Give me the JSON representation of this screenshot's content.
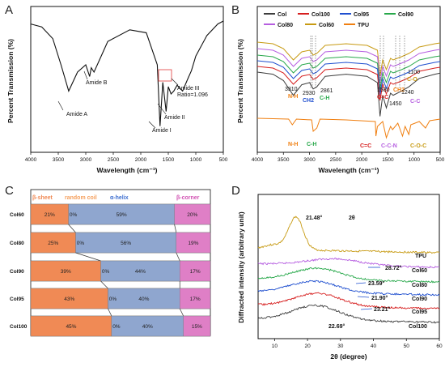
{
  "panels": {
    "a": "A",
    "b": "B",
    "c": "C",
    "d": "D"
  },
  "colors": {
    "Col": "#3d3d3d",
    "Col100": "#d61f1f",
    "Col95": "#1f4fcf",
    "Col90": "#27a84a",
    "Col80": "#b65ee0",
    "Col60": "#c79a12",
    "TPU": "#f07f10",
    "beta_sheet": "#f08a55",
    "random_coil": "#f5a05e",
    "alpha_helix": "#8fa6cf",
    "beta_corner": "#df7fc6"
  },
  "chart_data": [
    {
      "type": "line",
      "ylabel": "Percent Transmission (%)",
      "xlabel": "Wavelength (cm⁻¹)",
      "xlim": [
        4000,
        500
      ],
      "xticks": [
        "4000",
        "3500",
        "3000",
        "2500",
        "2000",
        "1500",
        "1000",
        "500"
      ],
      "series": [
        {
          "x": [
            4000,
            3800,
            3600,
            3450,
            3310,
            3150,
            3000,
            2930,
            2900,
            2850,
            2600,
            2200,
            1900,
            1700,
            1650,
            1600,
            1540,
            1500,
            1450,
            1400,
            1340,
            1240,
            1150,
            1080,
            1000,
            800,
            600,
            500
          ],
          "y": [
            88,
            86,
            78,
            60,
            42,
            55,
            60,
            52,
            58,
            55,
            76,
            84,
            82,
            60,
            18,
            48,
            28,
            45,
            40,
            42,
            46,
            42,
            50,
            56,
            66,
            80,
            88,
            90
          ]
        }
      ],
      "annotations": [
        "Amide A",
        "Amide B",
        "Amide I",
        "Amide II",
        "Amide III",
        "Ratio=1.096"
      ]
    },
    {
      "type": "line",
      "ylabel": "Percent Transmission (%)",
      "xlabel": "Wavelength (cm⁻¹)",
      "xlim": [
        4000,
        500
      ],
      "xticks": [
        "4000",
        "3500",
        "3000",
        "2500",
        "2000",
        "1500",
        "1000",
        "500"
      ],
      "legend": [
        "Col",
        "Col100",
        "Col95",
        "Col90",
        "Col80",
        "Col60",
        "TPU"
      ],
      "annotations": [
        "3310",
        "N-H",
        "2930",
        "CH2",
        "2861",
        "C-H",
        "1530",
        "C=C",
        "1450",
        "CH2",
        "1240",
        "C-C",
        "1100",
        "C-O",
        "N-H",
        "C-H",
        "C=C",
        "C-C-N",
        "C-O-C"
      ]
    },
    {
      "type": "bar",
      "orientation": "horizontal-stacked",
      "header": [
        "β-sheet",
        "random coil",
        "α-helix",
        "β-corner"
      ],
      "categories": [
        "Col60",
        "Col80",
        "Col90",
        "Col95",
        "Col100"
      ],
      "series": [
        {
          "name": "β-sheet",
          "values": [
            21,
            25,
            39,
            43,
            45
          ]
        },
        {
          "name": "random coil",
          "values": [
            0,
            0,
            0,
            0,
            0
          ]
        },
        {
          "name": "α-helix",
          "values": [
            59,
            56,
            44,
            40,
            40
          ]
        },
        {
          "name": "β-corner",
          "values": [
            20,
            19,
            17,
            17,
            15
          ]
        }
      ],
      "labels": {
        "sheet": [
          "21%",
          "25%",
          "39%",
          "43%",
          "45%"
        ],
        "coil": [
          "0%",
          "0%",
          "0%",
          "0%",
          "0%"
        ],
        "helix": [
          "59%",
          "56%",
          "44%",
          "40%",
          "40%"
        ],
        "corner": [
          "20%",
          "19%",
          "17%",
          "17%",
          "15%"
        ]
      }
    },
    {
      "type": "line",
      "ylabel": "Diffracted intensity (arbitrary unit)",
      "xlabel": "2θ (degree)",
      "xlim": [
        5,
        60
      ],
      "xticks": [
        "10",
        "20",
        "30",
        "40",
        "50",
        "60"
      ],
      "series_names": [
        "TPU",
        "Col60",
        "Col80",
        "Col90",
        "Col95",
        "Col100"
      ],
      "peaks": [
        "21.48°",
        "28.72°",
        "23.59°",
        "21.90°",
        "23.21°",
        "22.69°"
      ],
      "theta_label": "2θ"
    }
  ]
}
